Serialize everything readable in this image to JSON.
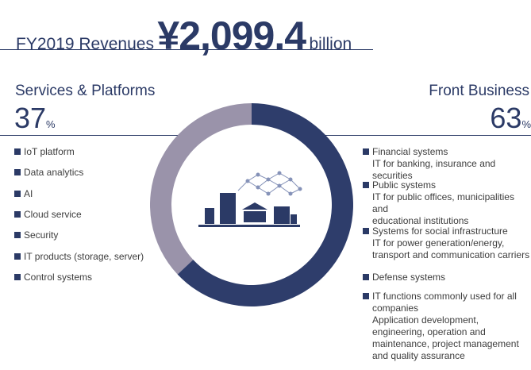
{
  "header": {
    "label": "FY2019 Revenues",
    "amount": "¥2,099.4",
    "unit": "billion"
  },
  "chart_data": {
    "type": "pie",
    "donut": true,
    "categories": [
      "Front Business",
      "Services & Platforms"
    ],
    "values": [
      63,
      37
    ],
    "unit": "%",
    "colors": [
      "#2e3d6b",
      "#9a93aa"
    ]
  },
  "left_list": [
    "IoT platform",
    "Data analytics",
    "AI",
    "Cloud service",
    "Security",
    "IT products (storage, server)",
    "Control systems"
  ],
  "right_list": [
    [
      "Financial systems",
      "IT for banking, insurance and securities"
    ],
    [
      "Public systems",
      "IT for public offices, municipalities and",
      "educational institutions"
    ],
    [
      "Systems for social infrastructure",
      "IT for power generation/energy,",
      "transport and communication carriers"
    ],
    [
      "Defense systems"
    ],
    [
      "IT functions commonly used for all",
      "companies",
      "Application development,",
      "engineering, operation and",
      "maintenance, project management",
      "and quality assurance"
    ]
  ]
}
